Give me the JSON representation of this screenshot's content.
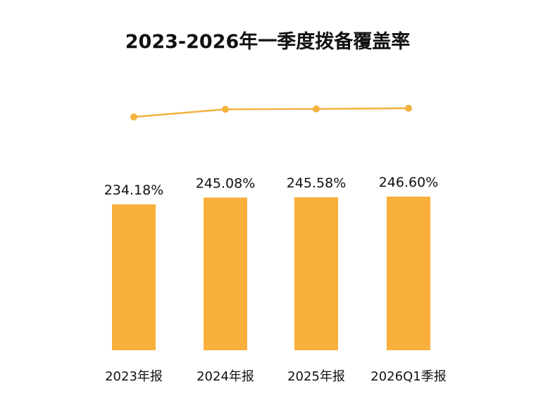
{
  "chart_data": {
    "type": "bar",
    "title": "2023-2026年一季度拨备覆盖率",
    "categories": [
      "2023年报",
      "2024年报",
      "2025年报",
      "2026Q1季报"
    ],
    "series": [
      {
        "values": [
          234.18,
          245.08,
          245.58,
          246.6
        ],
        "labels": [
          "234.18%",
          "245.08%",
          "245.58%",
          "246.60%"
        ]
      }
    ],
    "overlay_line": true,
    "xlabel": "",
    "ylabel": "",
    "ylim": [
      0,
      250
    ],
    "grid": false,
    "legend": "none",
    "colors": {
      "bar": "#F9AF3B",
      "line": "#F4B23F",
      "text": "#111111"
    }
  }
}
